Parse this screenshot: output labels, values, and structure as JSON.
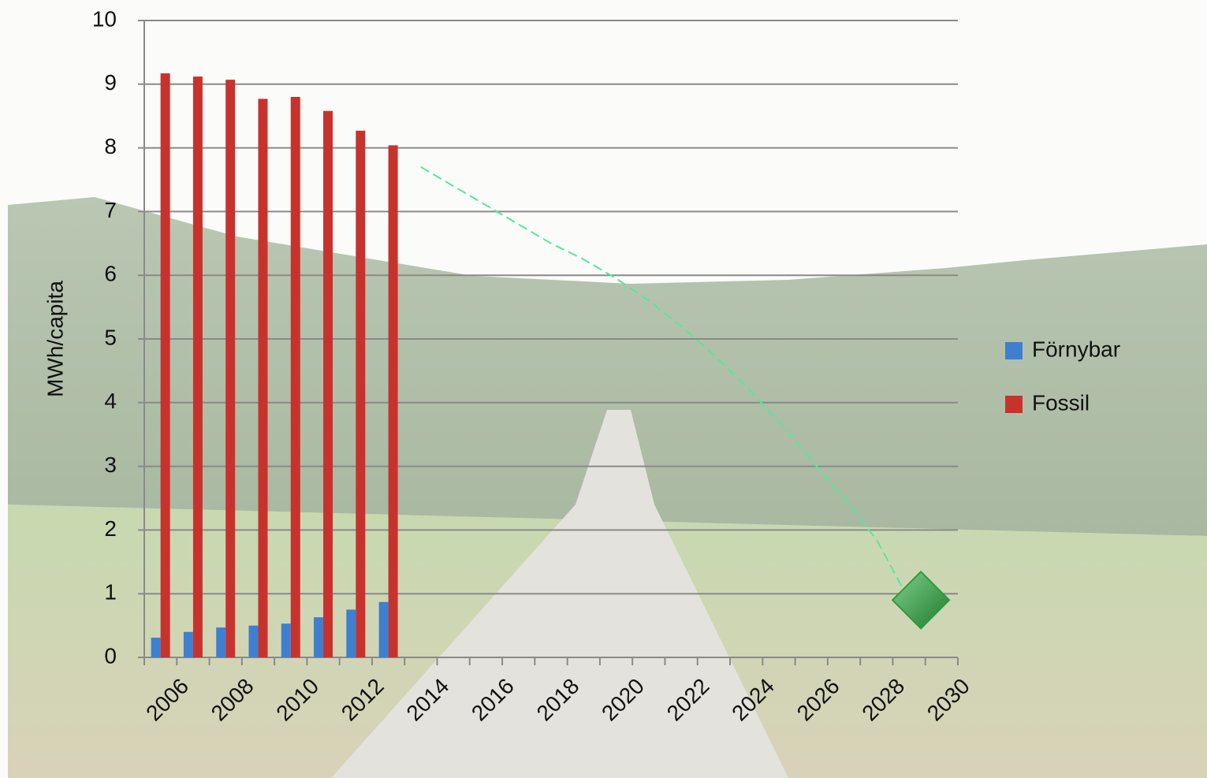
{
  "chart_data": {
    "type": "bar",
    "y_label": "MWh/capita",
    "categories": [
      "2006",
      null,
      "2008",
      null,
      "2010",
      null,
      "2012",
      null,
      "2014",
      null,
      "2016",
      null,
      "2018",
      null,
      "2020",
      null,
      "2022",
      null,
      "2024",
      null,
      "2026",
      null,
      "2028",
      null,
      "2030"
    ],
    "series": [
      {
        "name": "Förnybar",
        "color": "#3f7fd0",
        "values": [
          0.31,
          0.4,
          0.47,
          0.5,
          0.53,
          0.63,
          0.75,
          0.87,
          null,
          null,
          null,
          null,
          null,
          null,
          null,
          null,
          null,
          null,
          null,
          null,
          null,
          null,
          null,
          null,
          null
        ]
      },
      {
        "name": "Fossil",
        "color": "#c8322d",
        "values": [
          9.17,
          9.12,
          9.07,
          8.77,
          8.8,
          8.58,
          8.27,
          8.04,
          null,
          null,
          null,
          null,
          null,
          null,
          null,
          null,
          null,
          null,
          null,
          null,
          null,
          null,
          null,
          null,
          null
        ]
      },
      {
        "type": "line",
        "style": "dashed",
        "color": "#55e89a",
        "values": [
          null,
          null,
          null,
          null,
          null,
          null,
          null,
          null,
          7.7,
          7.4,
          7.1,
          6.8,
          6.5,
          6.25,
          5.95,
          5.6,
          5.2,
          4.75,
          4.25,
          3.7,
          3.1,
          2.5,
          1.85,
          0.9,
          null
        ]
      },
      {
        "type": "scatter",
        "marker": "diamond",
        "color": "#2e9a3c",
        "values": [
          null,
          null,
          null,
          null,
          null,
          null,
          null,
          null,
          null,
          null,
          null,
          null,
          null,
          null,
          null,
          null,
          null,
          null,
          null,
          null,
          null,
          null,
          null,
          0.9,
          null
        ]
      }
    ],
    "ylim": [
      0,
      10
    ],
    "yticks": [
      0,
      1,
      2,
      3,
      4,
      5,
      6,
      7,
      8,
      9,
      10
    ],
    "grid": true,
    "legend": "right"
  }
}
